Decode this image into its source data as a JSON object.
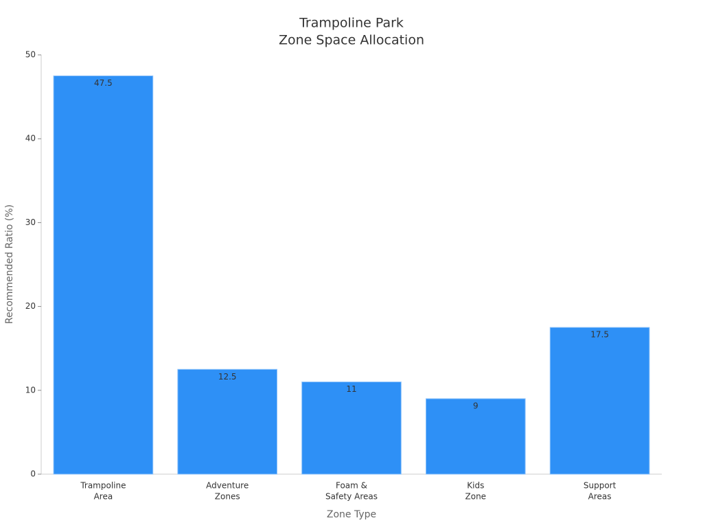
{
  "chart_data": {
    "type": "bar",
    "title": [
      "Trampoline Park",
      "Zone Space Allocation"
    ],
    "x_label": "Zone Type",
    "y_label": "Recommended Ratio (%)",
    "categories": [
      [
        "Trampoline",
        "Area"
      ],
      [
        "Adventure",
        "Zones"
      ],
      [
        "Foam &",
        "Safety Areas"
      ],
      [
        "Kids",
        "Zone"
      ],
      [
        "Support",
        "Areas"
      ]
    ],
    "values": [
      47.5,
      12.5,
      11,
      9,
      17.5
    ],
    "color": "#2e90f6",
    "ylim": [
      0,
      50
    ],
    "yticks": [
      0,
      10,
      20,
      30,
      40,
      50
    ],
    "grid": false
  }
}
